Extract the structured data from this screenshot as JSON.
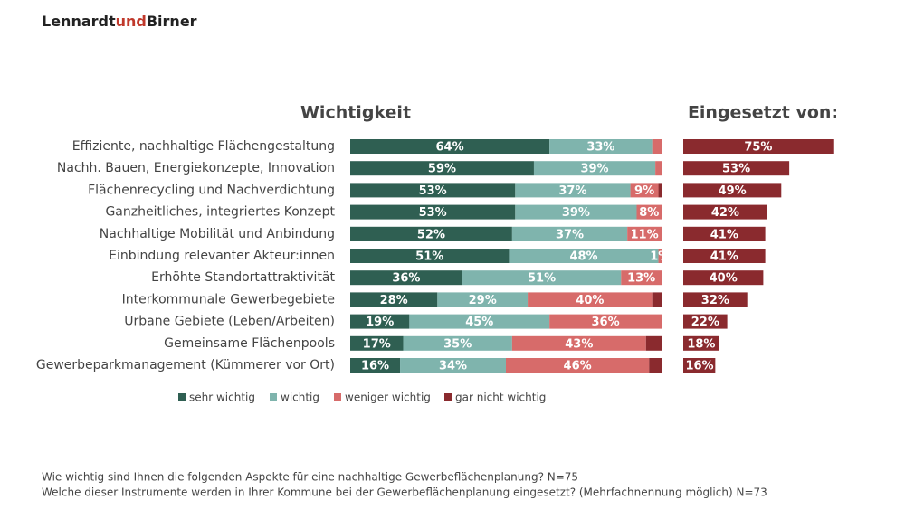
{
  "logo": [
    "Lennardt",
    "und",
    "Birner"
  ],
  "chart_data": [
    {
      "type": "bar",
      "orientation": "horizontal",
      "stacked": true,
      "title": "Wichtigkeit",
      "categories": [
        "Effiziente, nachhaltige Flächengestaltung",
        "Nachh. Bauen, Energiekonzepte, Innovation",
        "Flächenrecycling und Nachverdichtung",
        "Ganzheitliches, integriertes Konzept",
        "Nachhaltige Mobilität und Anbindung",
        "Einbindung relevanter Akteur:innen",
        "Erhöhte Standortattraktivität",
        "Interkommunale Gewerbegebiete",
        "Urbane Gebiete (Leben/Arbeiten)",
        "Gemeinsame Flächenpools",
        "Gewerbeparkmanagement (Kümmerer vor Ort)"
      ],
      "xlim": [
        0,
        100
      ],
      "series": [
        {
          "name": "sehr wichtig",
          "color": "#2f5f52",
          "values": [
            64,
            59,
            53,
            53,
            52,
            51,
            36,
            28,
            19,
            17,
            16
          ],
          "value_labels": [
            "64%",
            "59%",
            "53%",
            "53%",
            "52%",
            "51%",
            "36%",
            "28%",
            "19%",
            "17%",
            "16%"
          ]
        },
        {
          "name": "wichtig",
          "color": "#7fb4ad",
          "values": [
            33,
            39,
            37,
            39,
            37,
            48,
            51,
            29,
            45,
            35,
            34
          ],
          "value_labels": [
            "33%",
            "39%",
            "37%",
            "39%",
            "37%",
            "48%",
            "51%",
            "29%",
            "45%",
            "35%",
            "34%"
          ]
        },
        {
          "name": "weniger wichtig",
          "color": "#d76b6a",
          "values": [
            3,
            2,
            9,
            8,
            11,
            1,
            13,
            40,
            36,
            43,
            46
          ],
          "value_labels": [
            null,
            null,
            "9%",
            "8%",
            "11%",
            "1%",
            "13%",
            "40%",
            "36%",
            "43%",
            "46%"
          ]
        },
        {
          "name": "gar nicht wichtig",
          "color": "#8a2a2e",
          "values": [
            0,
            0,
            1,
            0,
            0,
            0,
            0,
            3,
            0,
            5,
            4
          ]
        }
      ]
    },
    {
      "type": "bar",
      "orientation": "horizontal",
      "title": "Eingesetzt von:",
      "color": "#8a2a2e",
      "xlim": [
        0,
        100
      ],
      "values": [
        75,
        53,
        49,
        42,
        41,
        41,
        40,
        32,
        22,
        18,
        16
      ],
      "value_labels": [
        "75%",
        "53%",
        "49%",
        "42%",
        "41%",
        "41%",
        "40%",
        "32%",
        "22%",
        "18%",
        "16%"
      ]
    }
  ],
  "notes": [
    "Wie wichtig sind Ihnen die folgenden Aspekte für eine nachhaltige Gewerbeflächenplanung? N=75",
    "Welche dieser Instrumente werden in Ihrer Kommune bei der Gewerbeflächenplanung eingesetzt? (Mehrfachnennung möglich) N=73"
  ]
}
